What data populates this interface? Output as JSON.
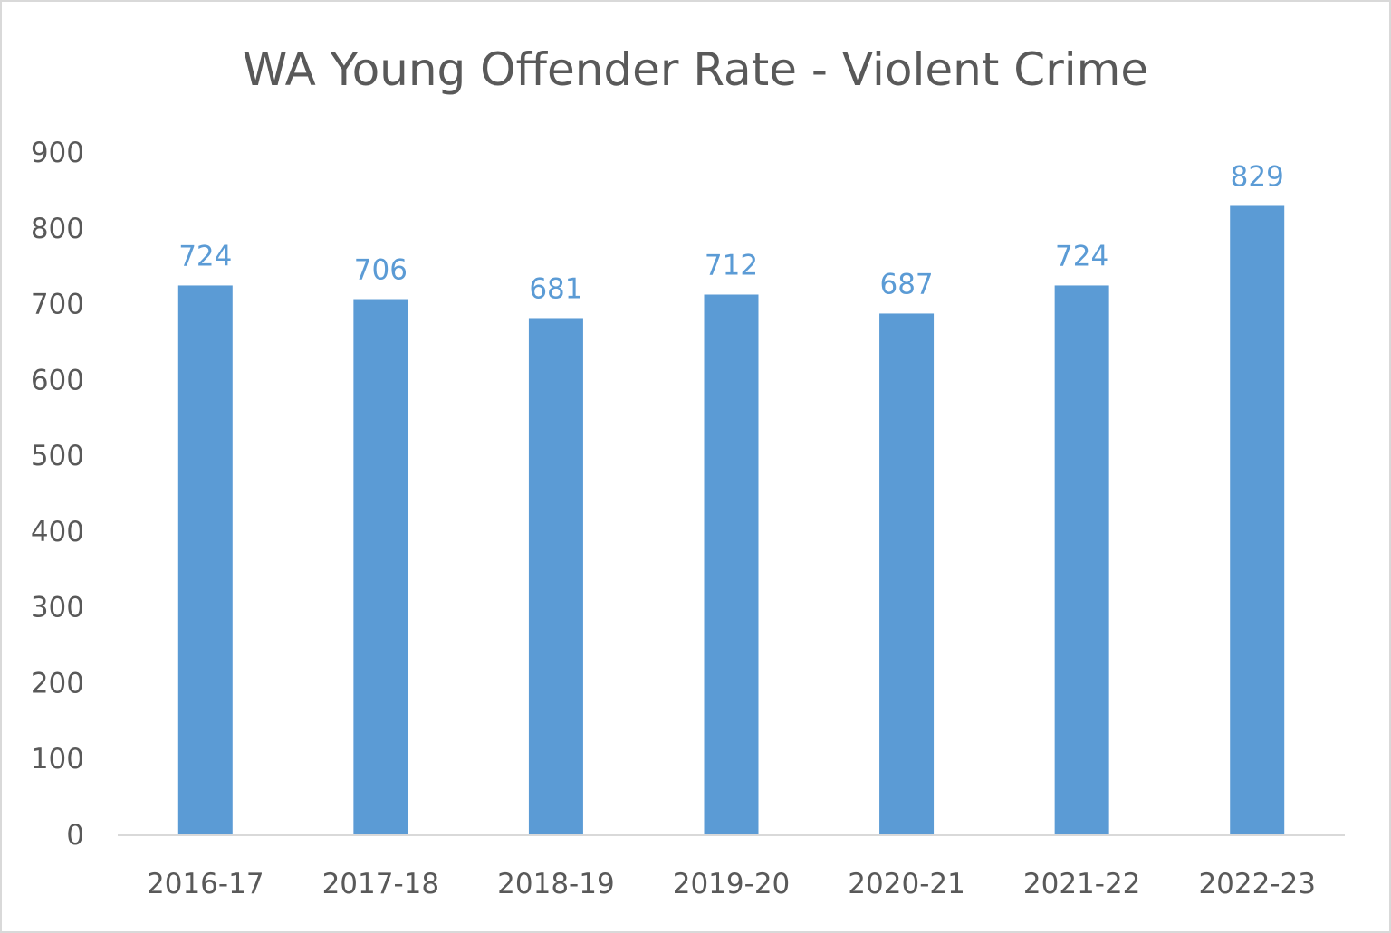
{
  "chart_data": {
    "type": "bar",
    "title": "WA Young Offender Rate - Violent Crime",
    "xlabel": "",
    "ylabel": "",
    "categories": [
      "2016-17",
      "2017-18",
      "2018-19",
      "2019-20",
      "2020-21",
      "2021-22",
      "2022-23"
    ],
    "values": [
      724,
      706,
      681,
      712,
      687,
      724,
      829
    ],
    "data_labels": [
      "724",
      "706",
      "681",
      "712",
      "687",
      "724",
      "829"
    ],
    "ylim": [
      0,
      900
    ],
    "yticks": [
      "0",
      "100",
      "200",
      "300",
      "400",
      "500",
      "600",
      "700",
      "800",
      "900"
    ],
    "grid": false,
    "legend": "none",
    "bar_color": "#5b9bd5",
    "label_color": "#5b9bd5",
    "axis_color": "#d9d9d9"
  }
}
